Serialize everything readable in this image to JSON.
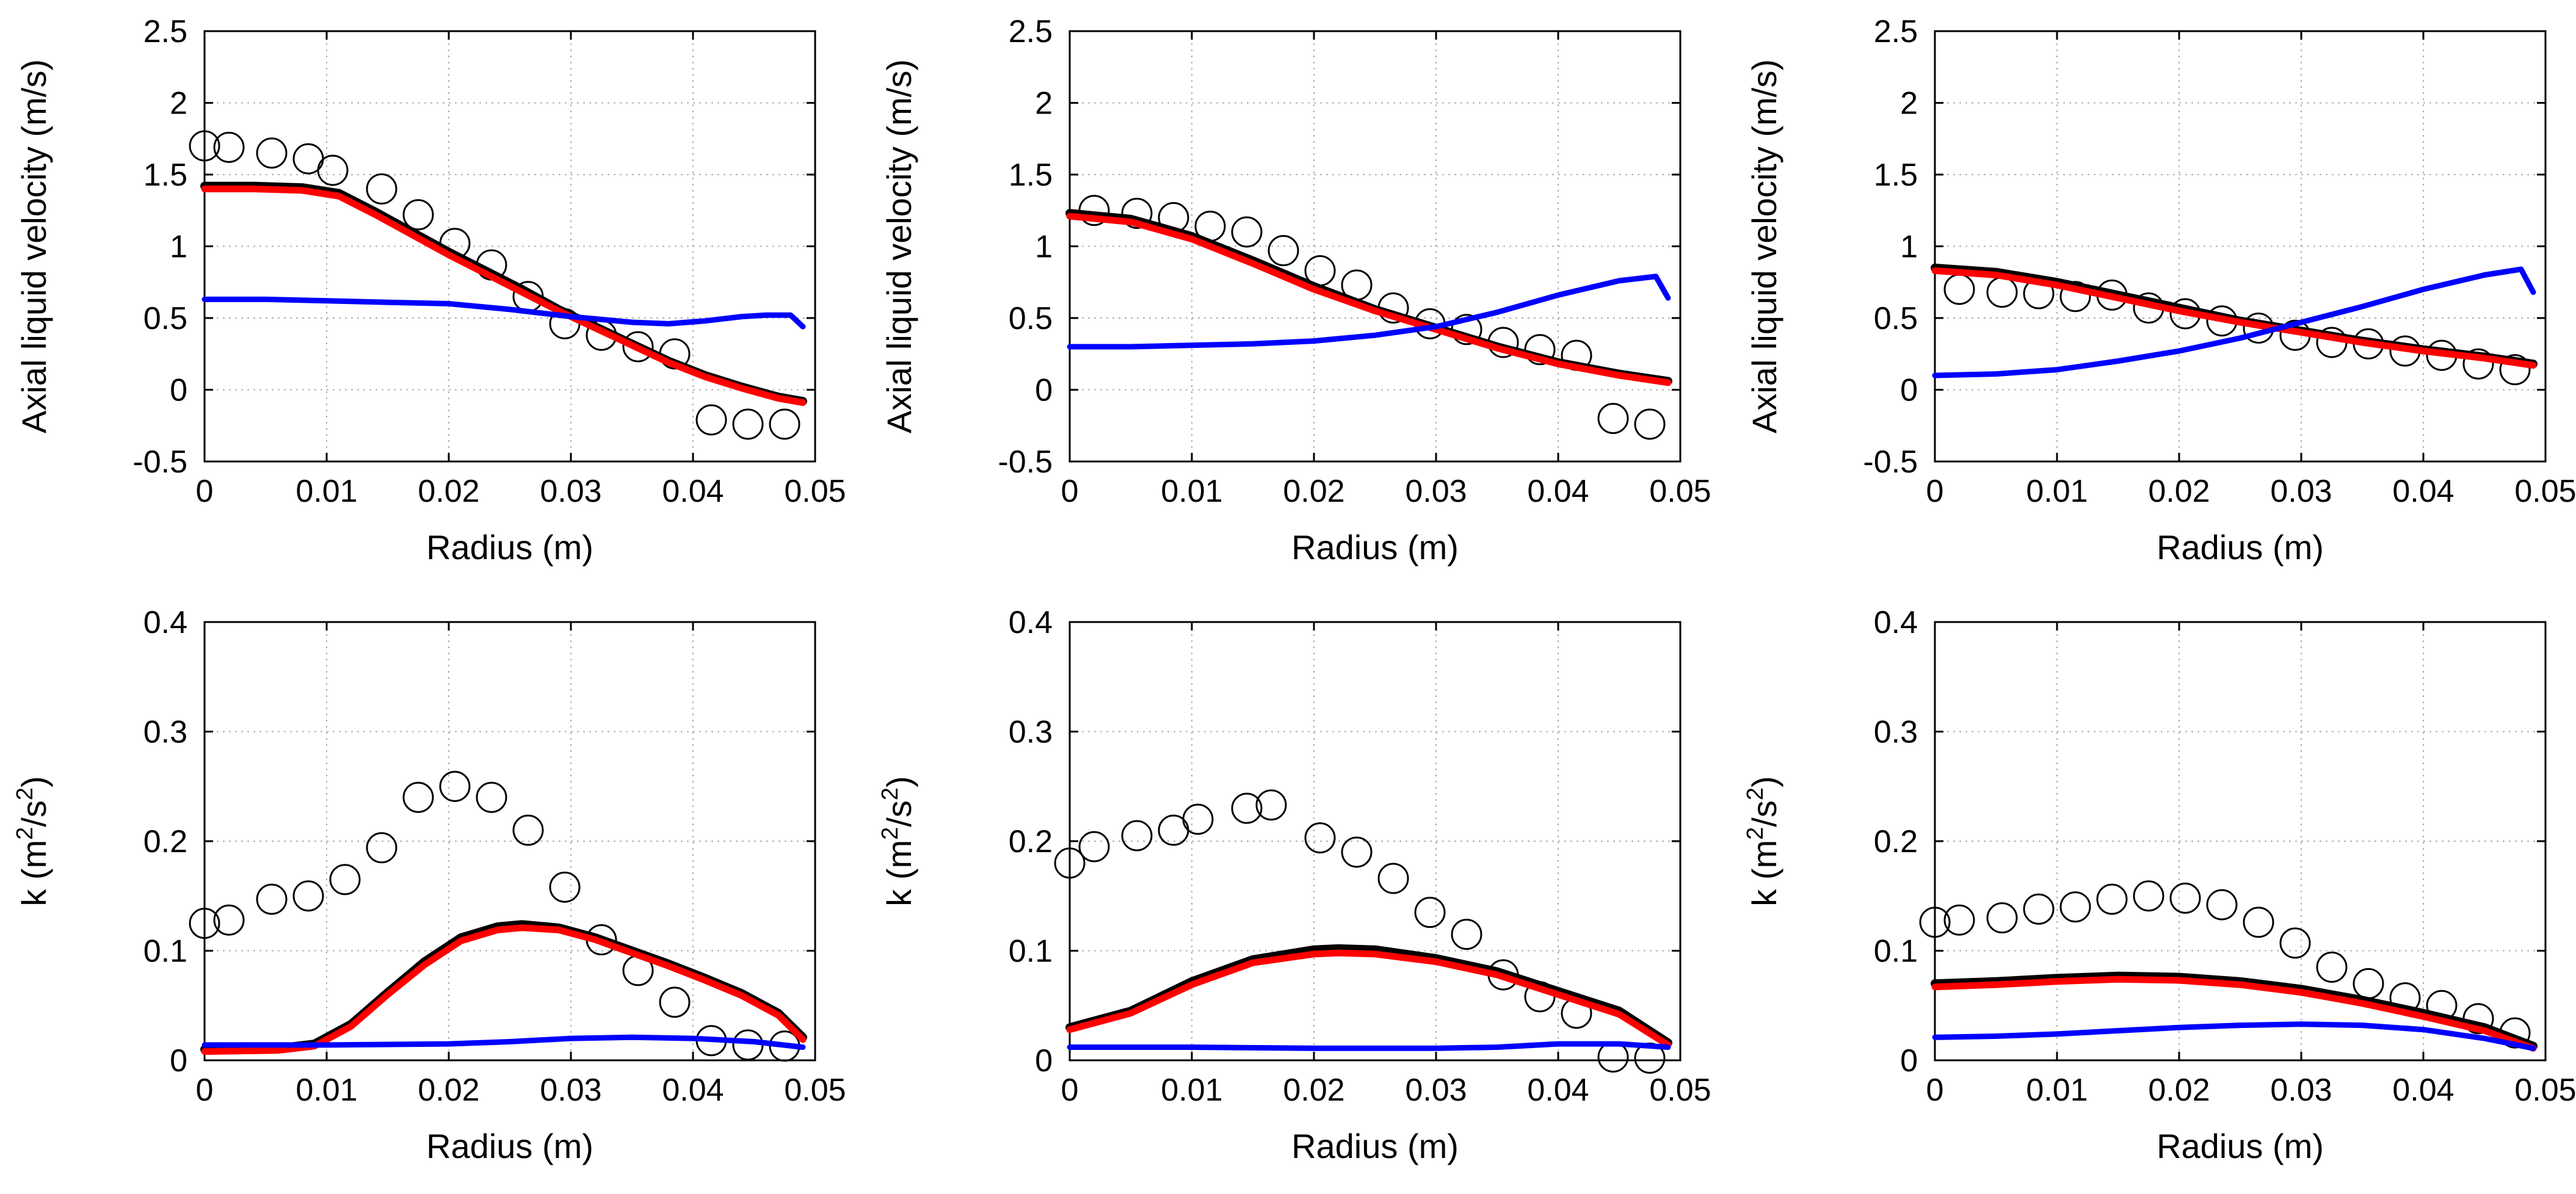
{
  "figure": {
    "layout": "2x3 grid",
    "style": {
      "grid": true,
      "grid_style": "dotted",
      "colors": {
        "experiment": "#000000",
        "black_model": "#000000",
        "red_model": "#ff0000",
        "blue_model": "#0000ff"
      },
      "experiment_marker": "open circle"
    }
  },
  "chart_data": [
    {
      "type": "line",
      "panel": "top-left",
      "xlabel": "Radius (m)",
      "ylabel": "Axial liquid velocity (m/s)",
      "xlim": [
        0,
        0.05
      ],
      "ylim": [
        -0.5,
        2.5
      ],
      "xticks": [
        "0",
        "0.01",
        "0.02",
        "0.03",
        "0.04",
        "0.05"
      ],
      "yticks": [
        "-0.5",
        "0",
        "0.5",
        "1",
        "1.5",
        "2",
        "2.5"
      ],
      "series": [
        {
          "style": "markers",
          "x": [
            0,
            0.002,
            0.0055,
            0.0085,
            0.0105,
            0.0145,
            0.0175,
            0.0205,
            0.0235,
            0.0265,
            0.0295,
            0.0325,
            0.0355,
            0.0385,
            0.0415,
            0.0445,
            0.0475
          ],
          "y": [
            1.7,
            1.69,
            1.65,
            1.61,
            1.53,
            1.4,
            1.22,
            1.02,
            0.87,
            0.65,
            0.46,
            0.38,
            0.3,
            0.25,
            -0.21,
            -0.24,
            -0.24
          ]
        },
        {
          "style": "line",
          "color": "#000000",
          "x": [
            0,
            0.004,
            0.008,
            0.011,
            0.014,
            0.017,
            0.02,
            0.023,
            0.026,
            0.029,
            0.032,
            0.035,
            0.038,
            0.041,
            0.044,
            0.047,
            0.049
          ],
          "y": [
            1.42,
            1.42,
            1.41,
            1.37,
            1.24,
            1.1,
            0.96,
            0.83,
            0.7,
            0.56,
            0.44,
            0.32,
            0.2,
            0.1,
            0.02,
            -0.05,
            -0.08
          ]
        },
        {
          "style": "line",
          "color": "#ff0000",
          "x": [
            0,
            0.004,
            0.008,
            0.011,
            0.014,
            0.017,
            0.02,
            0.023,
            0.026,
            0.029,
            0.032,
            0.035,
            0.038,
            0.041,
            0.044,
            0.047,
            0.049
          ],
          "y": [
            1.4,
            1.4,
            1.39,
            1.35,
            1.22,
            1.08,
            0.94,
            0.81,
            0.68,
            0.55,
            0.43,
            0.31,
            0.19,
            0.09,
            0.01,
            -0.06,
            -0.09
          ]
        },
        {
          "style": "line",
          "color": "#0000ff",
          "x": [
            0,
            0.005,
            0.01,
            0.015,
            0.02,
            0.025,
            0.03,
            0.035,
            0.038,
            0.041,
            0.044,
            0.046,
            0.048,
            0.049
          ],
          "y": [
            0.63,
            0.63,
            0.62,
            0.61,
            0.6,
            0.56,
            0.51,
            0.47,
            0.46,
            0.48,
            0.51,
            0.52,
            0.52,
            0.44
          ]
        }
      ]
    },
    {
      "type": "line",
      "panel": "top-middle",
      "xlabel": "Radius (m)",
      "ylabel": "Axial liquid velocity (m/s)",
      "xlim": [
        0,
        0.05
      ],
      "ylim": [
        -0.5,
        2.5
      ],
      "xticks": [
        "0",
        "0.01",
        "0.02",
        "0.03",
        "0.04",
        "0.05"
      ],
      "yticks": [
        "-0.5",
        "0",
        "0.5",
        "1",
        "1.5",
        "2",
        "2.5"
      ],
      "series": [
        {
          "style": "markers",
          "x": [
            0.002,
            0.0055,
            0.0085,
            0.0115,
            0.0145,
            0.0175,
            0.0205,
            0.0235,
            0.0265,
            0.0295,
            0.0325,
            0.0355,
            0.0385,
            0.0415,
            0.0445,
            0.0475
          ],
          "y": [
            1.25,
            1.23,
            1.2,
            1.14,
            1.1,
            0.97,
            0.83,
            0.73,
            0.57,
            0.46,
            0.42,
            0.33,
            0.28,
            0.24,
            -0.2,
            -0.24
          ]
        },
        {
          "style": "line",
          "color": "#000000",
          "x": [
            0,
            0.005,
            0.01,
            0.015,
            0.02,
            0.025,
            0.03,
            0.035,
            0.04,
            0.045,
            0.049
          ],
          "y": [
            1.23,
            1.19,
            1.07,
            0.9,
            0.72,
            0.56,
            0.43,
            0.3,
            0.19,
            0.11,
            0.06
          ]
        },
        {
          "style": "line",
          "color": "#ff0000",
          "x": [
            0,
            0.005,
            0.01,
            0.015,
            0.02,
            0.025,
            0.03,
            0.035,
            0.04,
            0.045,
            0.049
          ],
          "y": [
            1.21,
            1.17,
            1.05,
            0.88,
            0.7,
            0.55,
            0.42,
            0.29,
            0.18,
            0.1,
            0.05
          ]
        },
        {
          "style": "line",
          "color": "#0000ff",
          "x": [
            0,
            0.005,
            0.01,
            0.015,
            0.02,
            0.025,
            0.03,
            0.035,
            0.04,
            0.045,
            0.048,
            0.049
          ],
          "y": [
            0.3,
            0.3,
            0.31,
            0.32,
            0.34,
            0.38,
            0.44,
            0.54,
            0.66,
            0.76,
            0.79,
            0.64
          ]
        }
      ]
    },
    {
      "type": "line",
      "panel": "top-right",
      "xlabel": "Radius (m)",
      "ylabel": "Axial liquid velocity (m/s)",
      "xlim": [
        0,
        0.05
      ],
      "ylim": [
        -0.5,
        2.5
      ],
      "xticks": [
        "0",
        "0.01",
        "0.02",
        "0.03",
        "0.04",
        "0.05"
      ],
      "yticks": [
        "-0.5",
        "0",
        "0.5",
        "1",
        "1.5",
        "2",
        "2.5"
      ],
      "series": [
        {
          "style": "markers",
          "x": [
            0.002,
            0.0055,
            0.0085,
            0.0115,
            0.0145,
            0.0175,
            0.0205,
            0.0235,
            0.0265,
            0.0295,
            0.0325,
            0.0355,
            0.0385,
            0.0415,
            0.0445,
            0.0475
          ],
          "y": [
            0.7,
            0.68,
            0.67,
            0.65,
            0.66,
            0.57,
            0.53,
            0.48,
            0.43,
            0.38,
            0.33,
            0.32,
            0.27,
            0.24,
            0.18,
            0.14
          ]
        },
        {
          "style": "line",
          "color": "#000000",
          "x": [
            0,
            0.005,
            0.01,
            0.015,
            0.02,
            0.025,
            0.03,
            0.035,
            0.04,
            0.045,
            0.049
          ],
          "y": [
            0.85,
            0.82,
            0.75,
            0.66,
            0.57,
            0.48,
            0.41,
            0.34,
            0.28,
            0.23,
            0.18
          ]
        },
        {
          "style": "line",
          "color": "#ff0000",
          "x": [
            0,
            0.005,
            0.01,
            0.015,
            0.02,
            0.025,
            0.03,
            0.035,
            0.04,
            0.045,
            0.049
          ],
          "y": [
            0.83,
            0.8,
            0.73,
            0.64,
            0.55,
            0.47,
            0.4,
            0.33,
            0.27,
            0.22,
            0.17
          ]
        },
        {
          "style": "line",
          "color": "#0000ff",
          "x": [
            0,
            0.005,
            0.01,
            0.015,
            0.02,
            0.025,
            0.03,
            0.035,
            0.04,
            0.045,
            0.048,
            0.049
          ],
          "y": [
            0.1,
            0.11,
            0.14,
            0.2,
            0.27,
            0.36,
            0.47,
            0.58,
            0.7,
            0.8,
            0.84,
            0.68
          ]
        }
      ]
    },
    {
      "type": "line",
      "panel": "bottom-left",
      "xlabel": "Radius (m)",
      "ylabel": "k (m2/s2)",
      "xlim": [
        0,
        0.05
      ],
      "ylim": [
        0,
        0.4
      ],
      "xticks": [
        "0",
        "0.01",
        "0.02",
        "0.03",
        "0.04",
        "0.05"
      ],
      "yticks": [
        "0",
        "0.1",
        "0.2",
        "0.3",
        "0.4"
      ],
      "series": [
        {
          "style": "markers",
          "x": [
            0,
            0.002,
            0.0055,
            0.0085,
            0.0115,
            0.0145,
            0.0175,
            0.0205,
            0.0235,
            0.0265,
            0.0295,
            0.0325,
            0.0355,
            0.0385,
            0.0415,
            0.0445,
            0.0475
          ],
          "y": [
            0.125,
            0.128,
            0.147,
            0.15,
            0.165,
            0.194,
            0.24,
            0.25,
            0.24,
            0.21,
            0.158,
            0.11,
            0.082,
            0.053,
            0.018,
            0.014,
            0.013
          ]
        },
        {
          "style": "line",
          "color": "#000000",
          "x": [
            0,
            0.006,
            0.009,
            0.012,
            0.015,
            0.018,
            0.021,
            0.024,
            0.026,
            0.029,
            0.032,
            0.035,
            0.038,
            0.041,
            0.044,
            0.047,
            0.049
          ],
          "y": [
            0.01,
            0.011,
            0.015,
            0.033,
            0.062,
            0.09,
            0.112,
            0.122,
            0.124,
            0.121,
            0.112,
            0.1,
            0.088,
            0.075,
            0.061,
            0.043,
            0.021
          ]
        },
        {
          "style": "line",
          "color": "#ff0000",
          "x": [
            0,
            0.006,
            0.009,
            0.012,
            0.015,
            0.018,
            0.021,
            0.024,
            0.026,
            0.029,
            0.032,
            0.035,
            0.038,
            0.041,
            0.044,
            0.047,
            0.049
          ],
          "y": [
            0.008,
            0.009,
            0.013,
            0.031,
            0.06,
            0.087,
            0.109,
            0.119,
            0.121,
            0.119,
            0.11,
            0.098,
            0.086,
            0.073,
            0.059,
            0.041,
            0.019
          ]
        },
        {
          "style": "line",
          "color": "#0000ff",
          "x": [
            0,
            0.01,
            0.02,
            0.025,
            0.03,
            0.035,
            0.04,
            0.045,
            0.049
          ],
          "y": [
            0.014,
            0.014,
            0.015,
            0.017,
            0.02,
            0.021,
            0.02,
            0.017,
            0.012
          ]
        }
      ]
    },
    {
      "type": "line",
      "panel": "bottom-middle",
      "xlabel": "Radius (m)",
      "ylabel": "k (m2/s2)",
      "xlim": [
        0,
        0.05
      ],
      "ylim": [
        0,
        0.4
      ],
      "xticks": [
        "0",
        "0.01",
        "0.02",
        "0.03",
        "0.04",
        "0.05"
      ],
      "yticks": [
        "0",
        "0.1",
        "0.2",
        "0.3",
        "0.4"
      ],
      "series": [
        {
          "style": "markers",
          "x": [
            0,
            0.002,
            0.0055,
            0.0085,
            0.0105,
            0.0145,
            0.0165,
            0.0205,
            0.0235,
            0.0265,
            0.0295,
            0.0325,
            0.0355,
            0.0385,
            0.0415,
            0.0445,
            0.0475
          ],
          "y": [
            0.18,
            0.195,
            0.205,
            0.21,
            0.22,
            0.23,
            0.233,
            0.203,
            0.19,
            0.166,
            0.135,
            0.115,
            0.078,
            0.058,
            0.043,
            0.003,
            0.002
          ]
        },
        {
          "style": "line",
          "color": "#000000",
          "x": [
            0,
            0.005,
            0.01,
            0.015,
            0.02,
            0.022,
            0.025,
            0.03,
            0.035,
            0.04,
            0.045,
            0.049
          ],
          "y": [
            0.03,
            0.045,
            0.072,
            0.092,
            0.101,
            0.102,
            0.101,
            0.093,
            0.081,
            0.063,
            0.045,
            0.016
          ]
        },
        {
          "style": "line",
          "color": "#ff0000",
          "x": [
            0,
            0.005,
            0.01,
            0.015,
            0.02,
            0.022,
            0.025,
            0.03,
            0.035,
            0.04,
            0.045,
            0.049
          ],
          "y": [
            0.028,
            0.043,
            0.069,
            0.089,
            0.097,
            0.098,
            0.097,
            0.09,
            0.078,
            0.06,
            0.042,
            0.014
          ]
        },
        {
          "style": "line",
          "color": "#0000ff",
          "x": [
            0,
            0.01,
            0.02,
            0.03,
            0.035,
            0.04,
            0.045,
            0.049
          ],
          "y": [
            0.012,
            0.012,
            0.011,
            0.011,
            0.012,
            0.015,
            0.015,
            0.012
          ]
        }
      ]
    },
    {
      "type": "line",
      "panel": "bottom-right",
      "xlabel": "Radius (m)",
      "ylabel": "k (m2/s2)",
      "xlim": [
        0,
        0.05
      ],
      "ylim": [
        0,
        0.4
      ],
      "xticks": [
        "0",
        "0.01",
        "0.02",
        "0.03",
        "0.04",
        "0.05"
      ],
      "yticks": [
        "0",
        "0.1",
        "0.2",
        "0.3",
        "0.4"
      ],
      "series": [
        {
          "style": "markers",
          "x": [
            0,
            0.002,
            0.0055,
            0.0085,
            0.0115,
            0.0145,
            0.0175,
            0.0205,
            0.0235,
            0.0265,
            0.0295,
            0.0325,
            0.0355,
            0.0385,
            0.0415,
            0.0445,
            0.0475
          ],
          "y": [
            0.126,
            0.128,
            0.13,
            0.138,
            0.14,
            0.147,
            0.15,
            0.148,
            0.142,
            0.126,
            0.107,
            0.085,
            0.07,
            0.057,
            0.05,
            0.038,
            0.025
          ]
        },
        {
          "style": "line",
          "color": "#000000",
          "x": [
            0,
            0.005,
            0.01,
            0.015,
            0.02,
            0.025,
            0.03,
            0.035,
            0.04,
            0.045,
            0.049
          ],
          "y": [
            0.07,
            0.072,
            0.075,
            0.077,
            0.076,
            0.072,
            0.065,
            0.055,
            0.043,
            0.03,
            0.013
          ]
        },
        {
          "style": "line",
          "color": "#ff0000",
          "x": [
            0,
            0.005,
            0.01,
            0.015,
            0.02,
            0.025,
            0.03,
            0.035,
            0.04,
            0.045,
            0.049
          ],
          "y": [
            0.067,
            0.069,
            0.072,
            0.074,
            0.073,
            0.069,
            0.062,
            0.052,
            0.04,
            0.027,
            0.011
          ]
        },
        {
          "style": "line",
          "color": "#0000ff",
          "x": [
            0,
            0.005,
            0.01,
            0.015,
            0.02,
            0.025,
            0.03,
            0.035,
            0.04,
            0.045,
            0.049
          ],
          "y": [
            0.021,
            0.022,
            0.024,
            0.027,
            0.03,
            0.032,
            0.033,
            0.032,
            0.028,
            0.02,
            0.011
          ]
        }
      ]
    }
  ]
}
